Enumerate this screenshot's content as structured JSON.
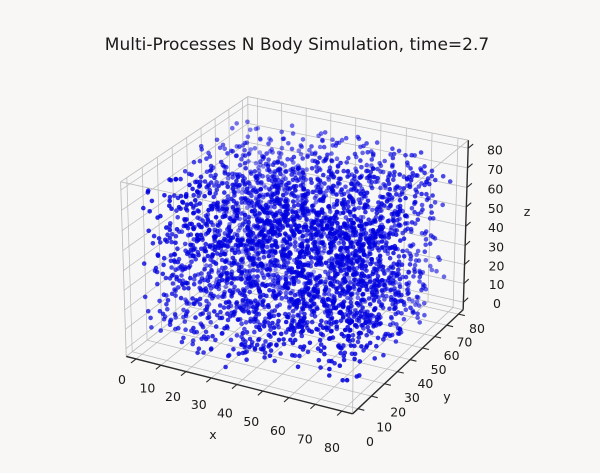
{
  "figure": {
    "background": "#f8f7f6"
  },
  "chart_data": {
    "type": "scatter",
    "projection": "3d",
    "title": "Multi-Processes N Body Simulation, time=2.7",
    "xlabel": "x",
    "ylabel": "y",
    "zlabel": "z",
    "xlim": [
      -4,
      84
    ],
    "ylim": [
      -4,
      84
    ],
    "zlim": [
      -4,
      84
    ],
    "xticks": [
      0,
      10,
      20,
      30,
      40,
      50,
      60,
      70,
      80
    ],
    "yticks": [
      0,
      10,
      20,
      30,
      40,
      50,
      60,
      70,
      80
    ],
    "zticks": [
      0,
      10,
      20,
      30,
      40,
      50,
      60,
      70,
      80
    ],
    "points": {
      "n": 3200,
      "distribution": "uniform with mild central clustering",
      "center_fraction": 0.15,
      "range": [
        0,
        80
      ],
      "seed": 1234,
      "color": "#0202df",
      "marker_radius": 2.3,
      "depthshade_alpha": [
        0.13,
        1.0
      ]
    },
    "view": {
      "elev": 25,
      "azim": -62,
      "dist": 10,
      "box_aspect": [
        1,
        1,
        0.75
      ]
    },
    "style": {
      "grid_color": "#bcbcbc",
      "pane_color": "rgba(247,247,249,0.55)",
      "axisline_color": "#2b2b2b",
      "text_color": "#1a1a1a"
    },
    "legend": null,
    "grid": true
  }
}
